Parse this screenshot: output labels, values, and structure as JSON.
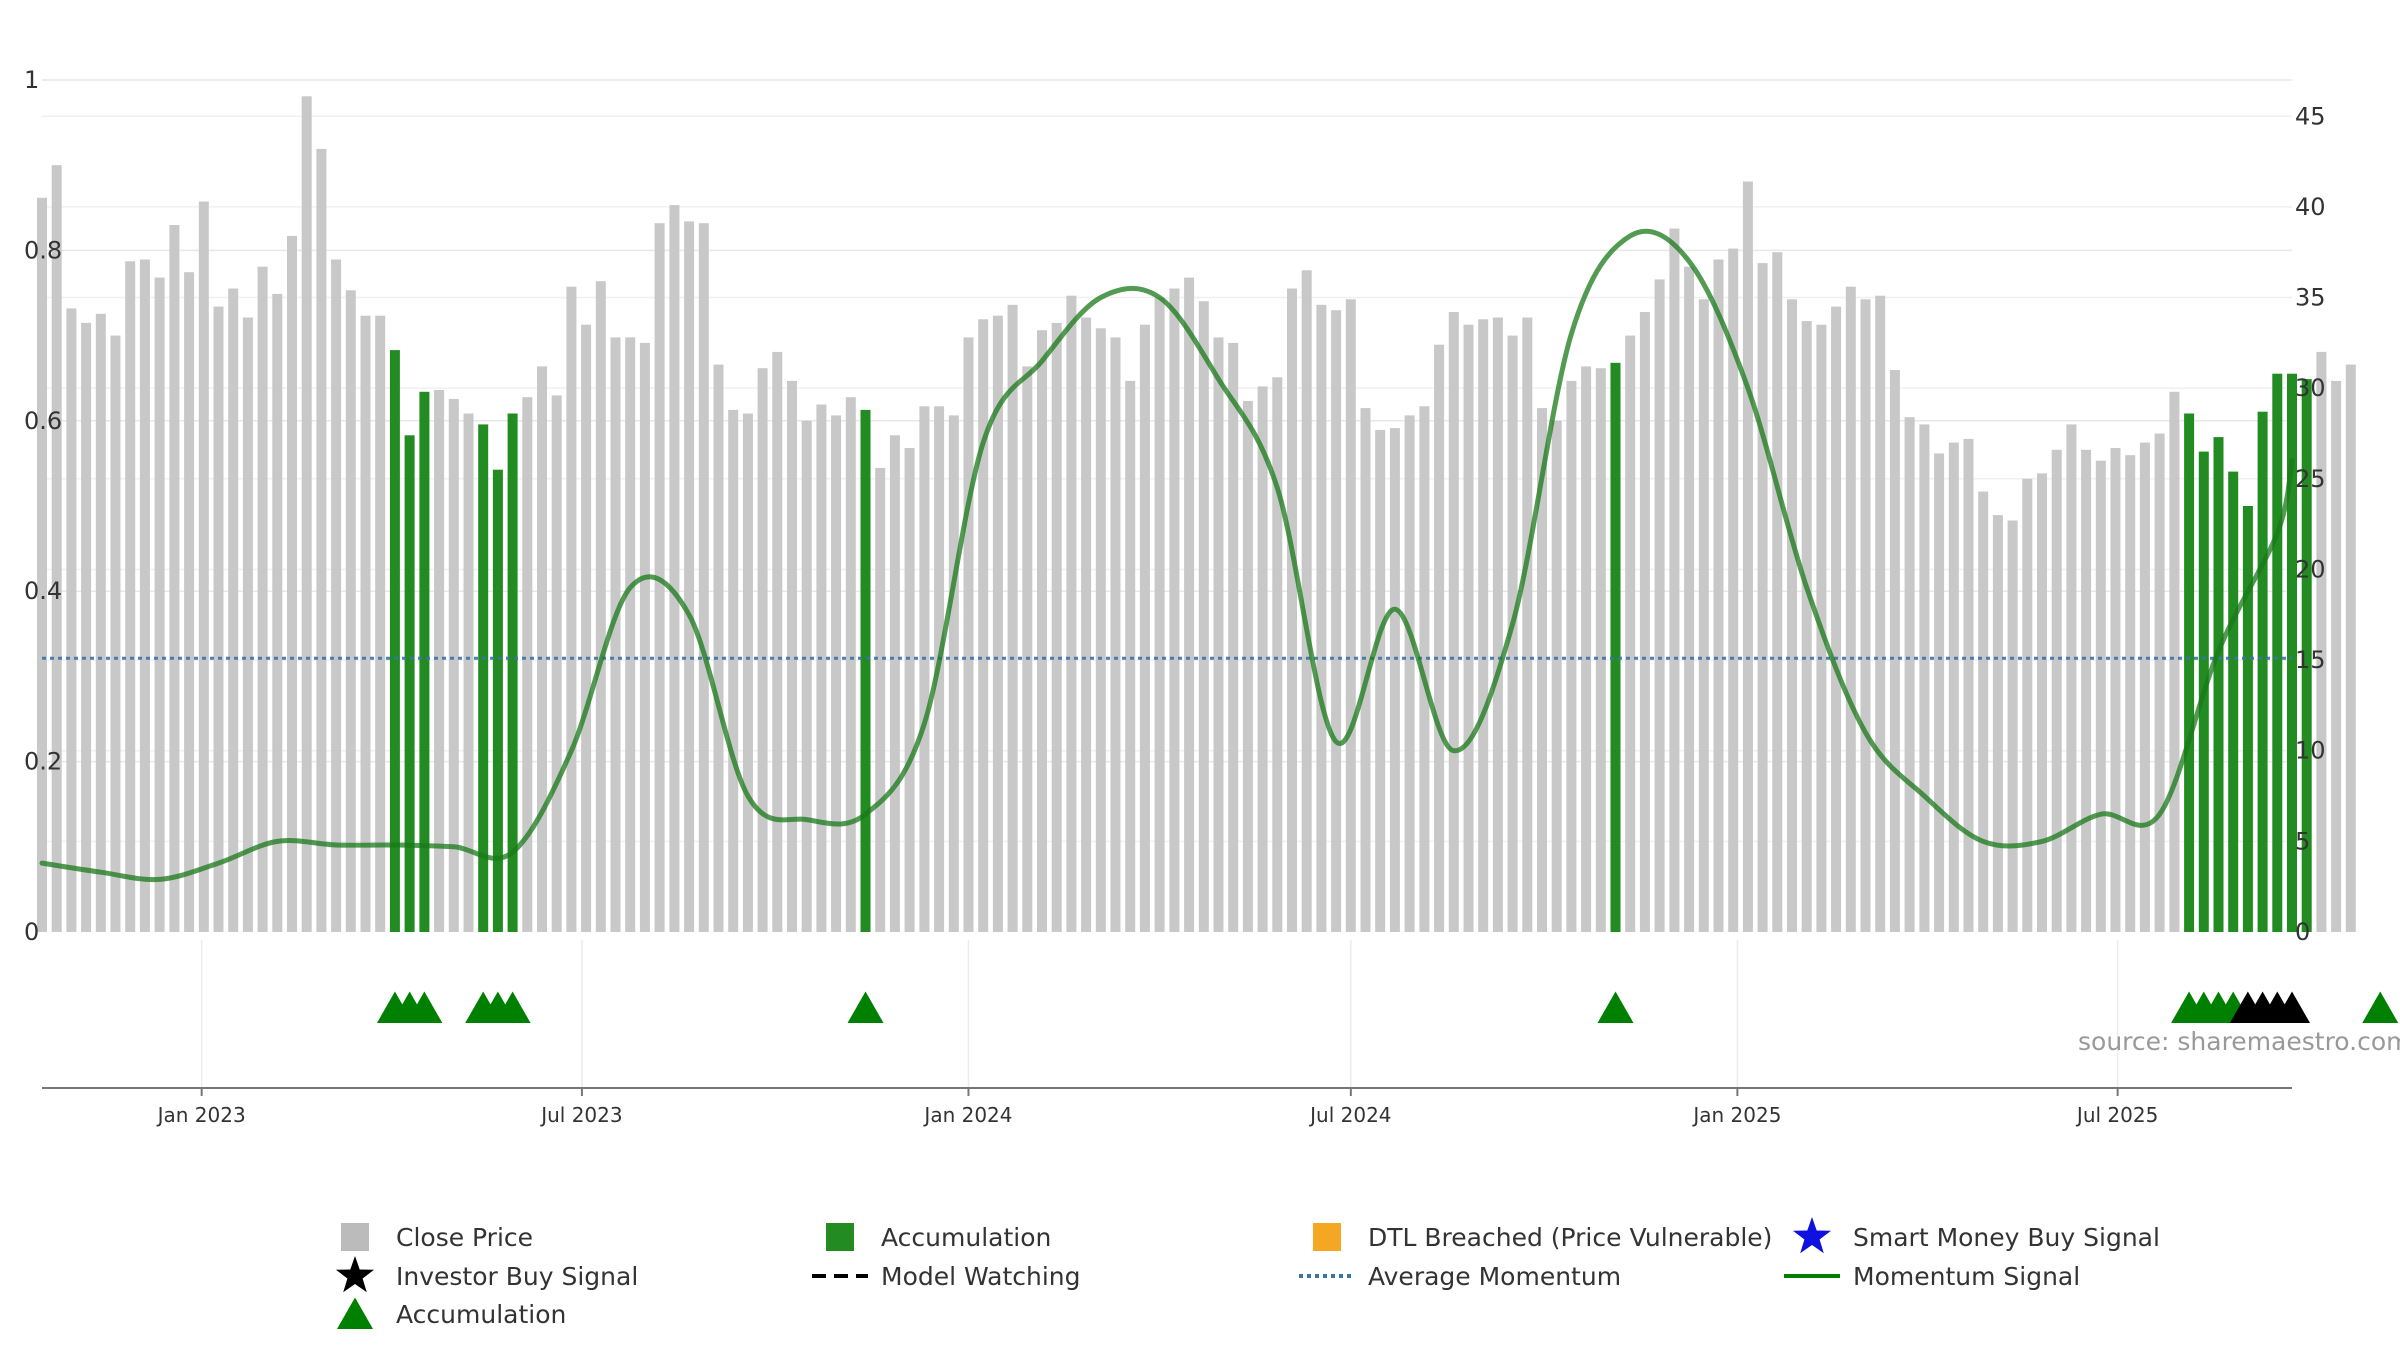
{
  "chart_data": {
    "type": "bar",
    "title": "",
    "xlabel": "",
    "ylabel": "",
    "left_axis": {
      "range": [
        0,
        1
      ],
      "ticks": [
        0,
        0.2,
        0.4,
        0.6,
        0.8,
        1
      ],
      "tick_labels": [
        "0",
        "0.2",
        "0.4",
        "0.6",
        "0.8",
        "1"
      ]
    },
    "right_axis": {
      "range": [
        0,
        47
      ],
      "ticks": [
        0,
        5,
        10,
        15,
        20,
        25,
        30,
        35,
        40,
        45
      ],
      "tick_labels": [
        "0",
        "5",
        "10",
        "15",
        "20",
        "25",
        "30",
        "35",
        "40",
        "45"
      ]
    },
    "x_range": [
      "2022-10-17",
      "2025-09-22"
    ],
    "x_ticks": [
      {
        "date": "2023-01-01",
        "label": "Jan 2023"
      },
      {
        "date": "2023-07-01",
        "label": "Jul 2023"
      },
      {
        "date": "2024-01-01",
        "label": "Jan 2024"
      },
      {
        "date": "2024-07-01",
        "label": "Jul 2024"
      },
      {
        "date": "2025-01-01",
        "label": "Jan 2025"
      },
      {
        "date": "2025-07-01",
        "label": "Jul 2025"
      }
    ],
    "series": [
      {
        "name": "Close Price",
        "axis": "right",
        "kind": "weekly_bars",
        "start_date": "2022-10-17",
        "step_days": 7,
        "values": [
          40.5,
          42.3,
          34.4,
          33.6,
          34.1,
          32.9,
          37.0,
          37.1,
          36.1,
          39.0,
          36.4,
          40.3,
          34.5,
          35.5,
          33.9,
          36.7,
          35.2,
          38.4,
          46.1,
          43.2,
          37.1,
          35.4,
          34.0,
          34.0,
          32.1,
          27.4,
          29.8,
          29.9,
          29.4,
          28.6,
          28.0,
          25.5,
          28.6,
          29.5,
          31.2,
          29.6,
          35.6,
          33.5,
          35.9,
          32.8,
          32.8,
          32.5,
          39.1,
          40.1,
          39.2,
          39.1,
          31.3,
          28.8,
          28.6,
          31.1,
          32.0,
          30.4,
          28.2,
          29.1,
          28.5,
          29.5,
          28.8,
          25.6,
          27.4,
          26.7,
          29.0,
          29.0,
          28.5,
          32.8,
          33.8,
          34.0,
          34.6,
          31.2,
          33.2,
          33.6,
          35.1,
          33.9,
          33.3,
          32.8,
          30.4,
          33.5,
          35.0,
          35.5,
          36.1,
          34.8,
          32.8,
          32.5,
          29.3,
          30.1,
          30.6,
          35.5,
          36.5,
          34.6,
          34.3,
          34.9,
          28.9,
          27.7,
          27.8,
          28.5,
          29.0,
          32.4,
          34.2,
          33.5,
          33.8,
          33.9,
          32.9,
          33.9,
          28.9,
          28.2,
          30.4,
          31.2,
          31.1,
          31.4,
          32.9,
          34.2,
          36.0,
          38.8,
          36.7,
          34.9,
          37.1,
          37.7,
          41.4,
          36.9,
          37.5,
          34.9,
          33.7,
          33.5,
          34.5,
          35.6,
          34.9,
          35.1,
          31.0,
          28.4,
          28.0,
          26.4,
          27.0,
          27.2,
          24.3,
          23.0,
          22.7,
          25.0,
          25.3,
          26.6,
          28.0,
          26.6,
          26.0,
          26.7,
          26.3,
          27.0,
          27.5,
          29.8,
          28.6,
          26.5,
          27.3,
          25.4,
          23.5,
          28.7,
          30.8,
          30.8,
          30.5,
          32.0,
          30.4,
          31.3
        ],
        "accumulation_indices": [
          24,
          25,
          26,
          30,
          31,
          32,
          56,
          107,
          146,
          147,
          148,
          149,
          150,
          151,
          152,
          153,
          154,
          159
        ]
      },
      {
        "name": "Momentum Signal",
        "axis": "right",
        "kind": "line",
        "dates": [
          "2022-10-17",
          "2022-11-14",
          "2022-12-12",
          "2023-01-09",
          "2023-02-06",
          "2023-03-06",
          "2023-04-03",
          "2023-05-01",
          "2023-05-29",
          "2023-06-26",
          "2023-07-24",
          "2023-08-21",
          "2023-09-18",
          "2023-10-16",
          "2023-11-13",
          "2023-12-11",
          "2024-01-08",
          "2024-02-05",
          "2024-03-04",
          "2024-04-01",
          "2024-04-29",
          "2024-05-27",
          "2024-06-24",
          "2024-07-22",
          "2024-08-19",
          "2024-09-16",
          "2024-10-14",
          "2024-11-11",
          "2024-12-09",
          "2025-01-06",
          "2025-02-03",
          "2025-03-03",
          "2025-03-31",
          "2025-04-28",
          "2025-05-26",
          "2025-06-23",
          "2025-07-21",
          "2025-08-18",
          "2025-09-15",
          "2025-09-22"
        ],
        "values": [
          3.8,
          3.3,
          2.9,
          3.8,
          5.0,
          4.8,
          4.8,
          4.7,
          4.4,
          10.0,
          19.0,
          17.5,
          7.5,
          6.2,
          6.5,
          11.5,
          27.0,
          31.5,
          35.0,
          35.0,
          30.5,
          24.5,
          10.5,
          17.8,
          10.0,
          17.0,
          33.0,
          38.4,
          37.0,
          30.0,
          19.0,
          11.0,
          7.5,
          5.0,
          5.0,
          6.5,
          6.5,
          15.5,
          22.0,
          26.0
        ]
      },
      {
        "name": "Average Momentum",
        "axis": "right",
        "kind": "hline",
        "value": 15.1
      }
    ],
    "markers": [
      {
        "name": "Accumulation",
        "shape": "triangle",
        "color": "#008000",
        "bar_indices": [
          24,
          25,
          26,
          30,
          31,
          32,
          56,
          107,
          146,
          147,
          148,
          149,
          159
        ]
      },
      {
        "name": "Investor Buy Signal",
        "shape": "triangle",
        "color": "#000000",
        "bar_indices": [
          150,
          151,
          152,
          153
        ]
      }
    ],
    "source": "source: sharemaestro.com",
    "legend": {
      "placement": "bottom-center",
      "items": [
        {
          "label": "Close Price",
          "symbol": "square",
          "color": "#bbbbbb"
        },
        {
          "label": "Accumulation",
          "symbol": "square",
          "color": "#228b22"
        },
        {
          "label": "DTL Breached (Price Vulnerable)",
          "symbol": "square",
          "color": "#f5a623"
        },
        {
          "label": "Smart Money Buy Signal",
          "symbol": "star",
          "color": "#1010e0"
        },
        {
          "label": "Investor Buy Signal",
          "symbol": "star",
          "color": "#000000"
        },
        {
          "label": "Model Watching",
          "symbol": "dashed-line",
          "color": "#000000"
        },
        {
          "label": "Average Momentum",
          "symbol": "dotted-line",
          "color": "#3a74a8"
        },
        {
          "label": "Momentum Signal",
          "symbol": "solid-line",
          "color": "#008000"
        },
        {
          "label": "Accumulation",
          "symbol": "triangle",
          "color": "#008000"
        }
      ]
    }
  }
}
